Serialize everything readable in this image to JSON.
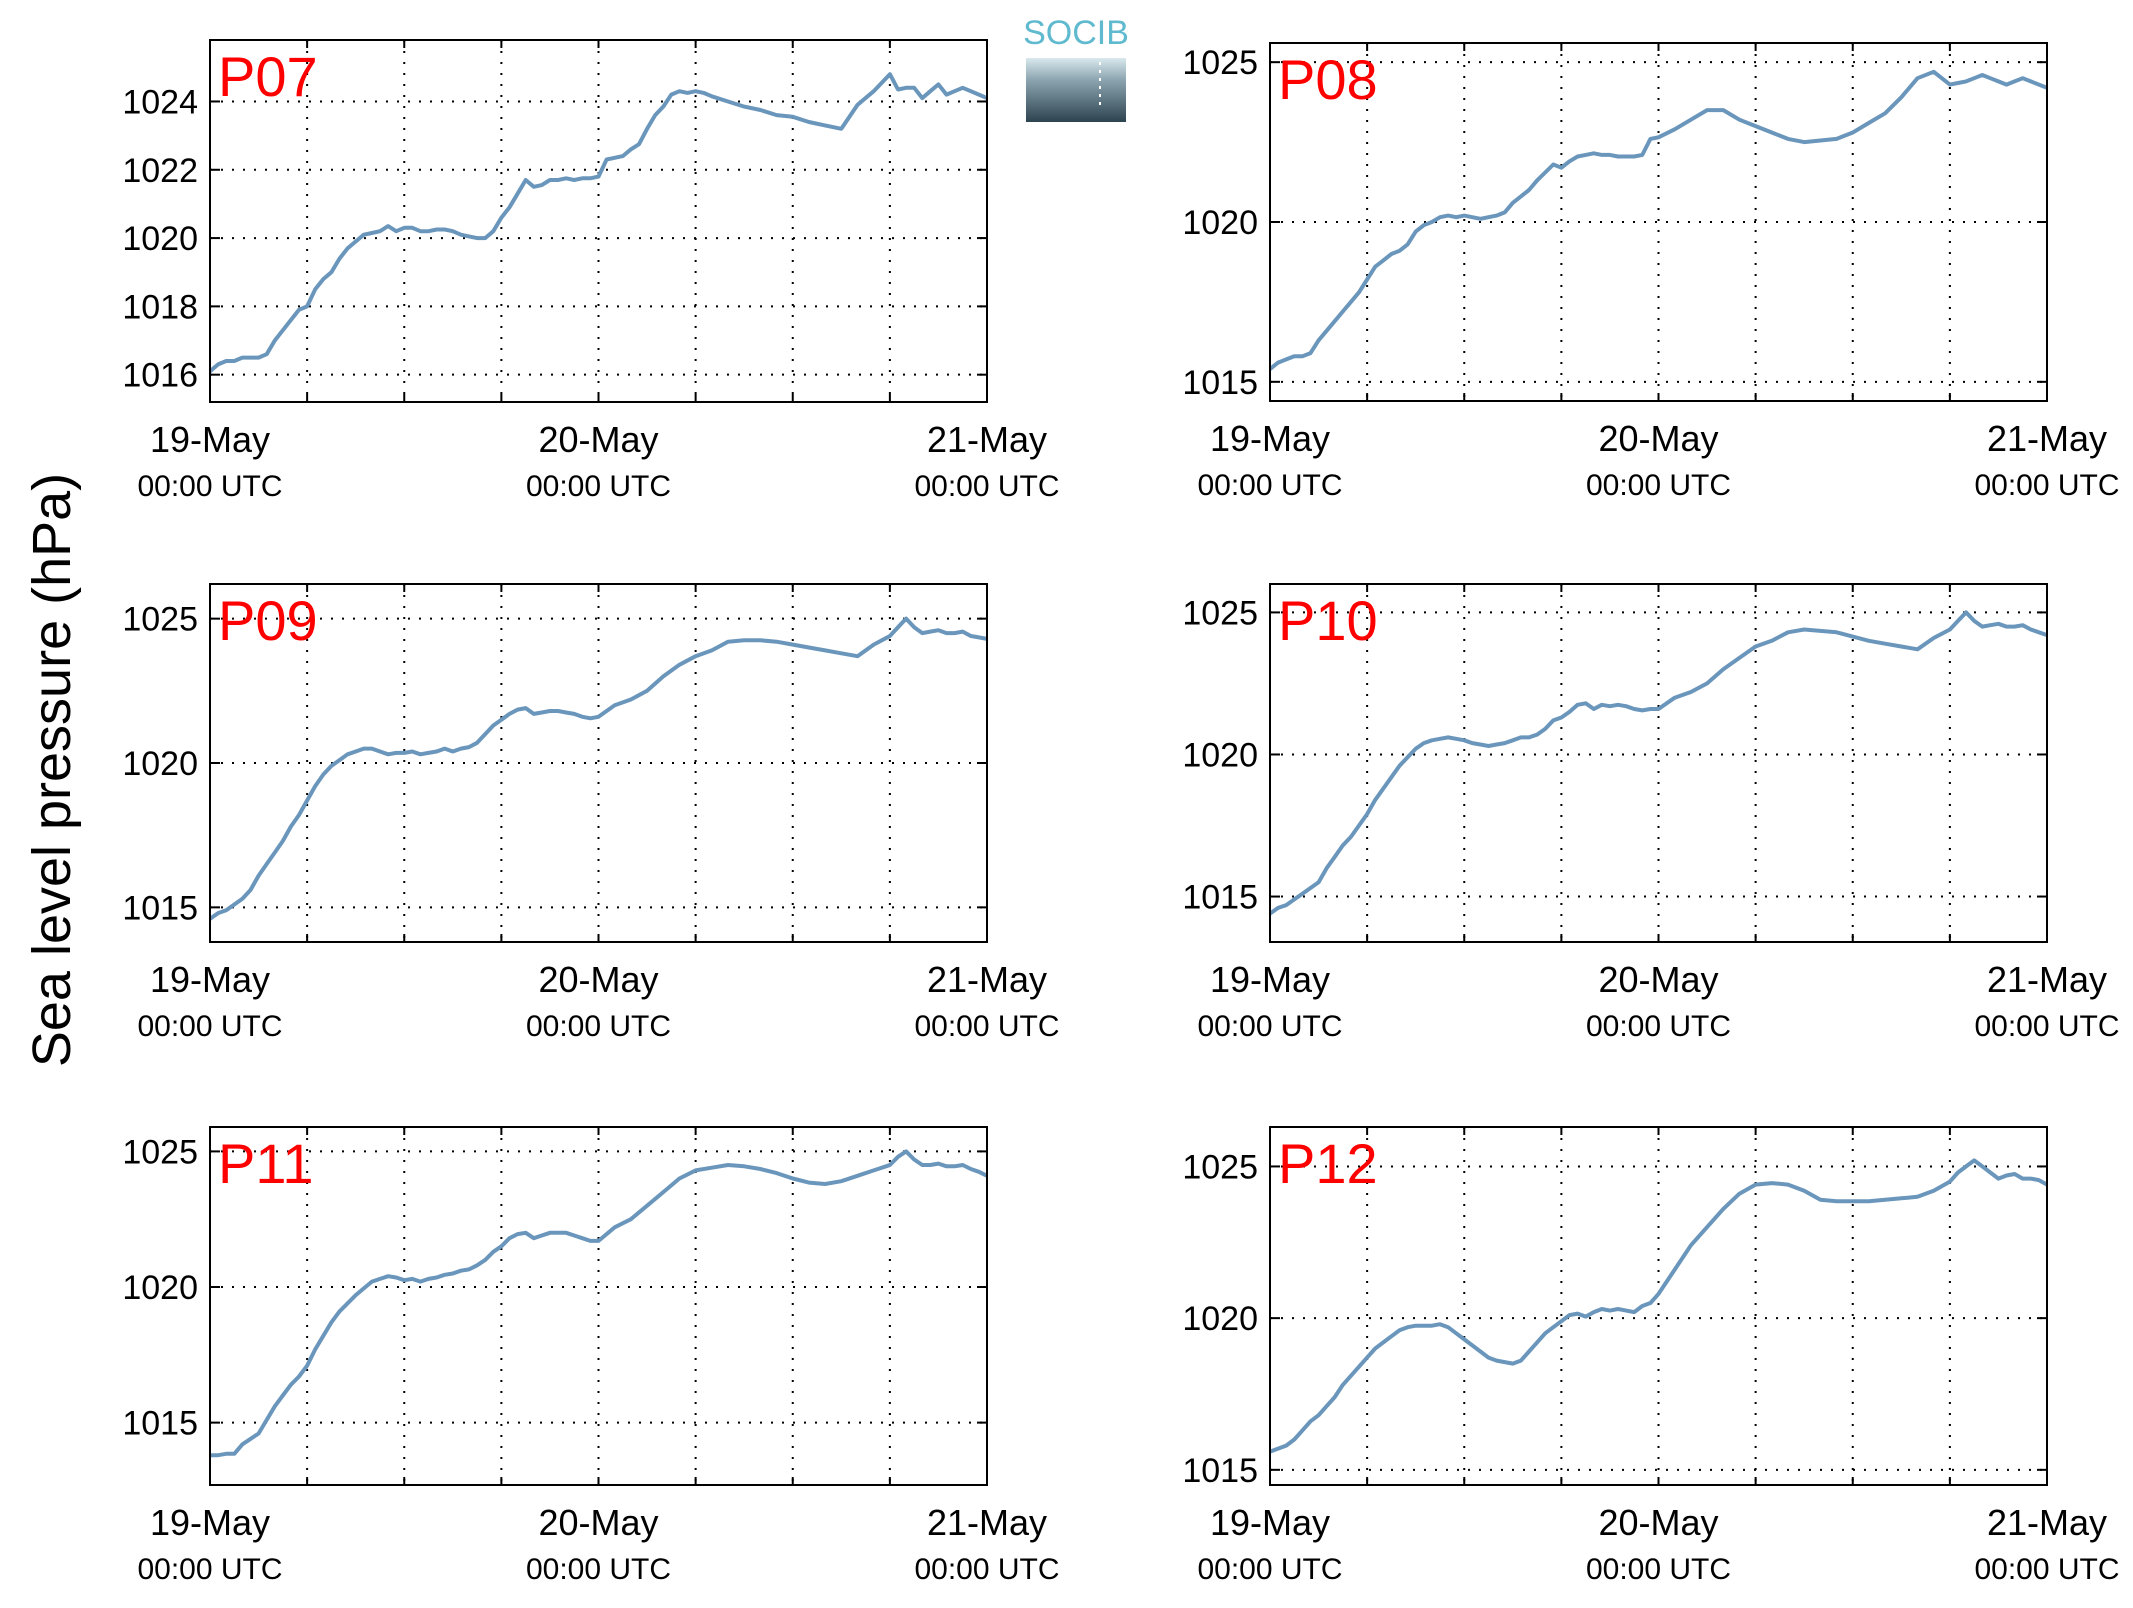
{
  "figure": {
    "ylabel": "Sea level pressure (hPa)",
    "logo_text": "SOCIB",
    "line_color": "#6b96bc",
    "panel_label_color": "#ff0000"
  },
  "chart_data": [
    {
      "type": "line",
      "title": "P07",
      "x_ticks": [
        {
          "line1": "19-May",
          "line2": "00:00 UTC"
        },
        {
          "line1": "20-May",
          "line2": "00:00 UTC"
        },
        {
          "line1": "21-May",
          "line2": "00:00 UTC"
        }
      ],
      "xlim": [
        0,
        48
      ],
      "ylim": [
        1015.2,
        1025.8
      ],
      "y_ticks": [
        1016,
        1018,
        1020,
        1022,
        1024
      ],
      "grid": true,
      "x": [
        0,
        0.5,
        1,
        1.5,
        2,
        2.5,
        3,
        3.5,
        4,
        4.5,
        5,
        5.5,
        6,
        6.5,
        7,
        7.5,
        8,
        8.5,
        9,
        9.5,
        10,
        10.5,
        11,
        11.5,
        12,
        12.5,
        13,
        13.5,
        14,
        14.5,
        15,
        15.5,
        16,
        16.5,
        17,
        17.5,
        18,
        18.5,
        19,
        19.5,
        20,
        20.5,
        21,
        21.5,
        22,
        22.5,
        23,
        23.5,
        24,
        24.5,
        25,
        25.5,
        26,
        26.5,
        27,
        27.5,
        28,
        28.5,
        29,
        29.5,
        30,
        30.5,
        31,
        32,
        33,
        34,
        35,
        36,
        37,
        38,
        39,
        40,
        41,
        42,
        42.5,
        43,
        43.5,
        44,
        44.5,
        45,
        45.5,
        46,
        46.5,
        47,
        47.5,
        48
      ],
      "values": [
        1016.1,
        1016.3,
        1016.4,
        1016.4,
        1016.5,
        1016.5,
        1016.5,
        1016.6,
        1017.0,
        1017.3,
        1017.6,
        1017.9,
        1018.0,
        1018.5,
        1018.8,
        1019.0,
        1019.4,
        1019.7,
        1019.9,
        1020.1,
        1020.15,
        1020.2,
        1020.35,
        1020.2,
        1020.3,
        1020.3,
        1020.2,
        1020.2,
        1020.25,
        1020.25,
        1020.2,
        1020.1,
        1020.05,
        1020.0,
        1020.0,
        1020.2,
        1020.6,
        1020.9,
        1021.3,
        1021.7,
        1021.5,
        1021.55,
        1021.7,
        1021.7,
        1021.75,
        1021.7,
        1021.75,
        1021.75,
        1021.8,
        1022.3,
        1022.35,
        1022.4,
        1022.6,
        1022.75,
        1023.2,
        1023.6,
        1023.85,
        1024.2,
        1024.3,
        1024.25,
        1024.3,
        1024.25,
        1024.15,
        1024.0,
        1023.85,
        1023.75,
        1023.6,
        1023.55,
        1023.4,
        1023.3,
        1023.2,
        1023.9,
        1024.3,
        1024.8,
        1024.35,
        1024.4,
        1024.4,
        1024.1,
        1024.3,
        1024.5,
        1024.2,
        1024.3,
        1024.4,
        1024.3,
        1024.2,
        1024.1
      ],
      "values_note": ""
    },
    {
      "type": "line",
      "title": "P08",
      "x_ticks": [
        {
          "line1": "19-May",
          "line2": "00:00 UTC"
        },
        {
          "line1": "20-May",
          "line2": "00:00 UTC"
        },
        {
          "line1": "21-May",
          "line2": "00:00 UTC"
        }
      ],
      "xlim": [
        0,
        48
      ],
      "ylim": [
        1014.4,
        1025.6
      ],
      "y_ticks": [
        1015,
        1020,
        1025
      ],
      "grid": true,
      "x": [
        0,
        0.5,
        1,
        1.5,
        2,
        2.5,
        3,
        3.5,
        4,
        4.5,
        5,
        5.5,
        6,
        6.5,
        7,
        7.5,
        8,
        8.5,
        9,
        9.5,
        10,
        10.5,
        11,
        11.5,
        12,
        12.5,
        13,
        13.5,
        14,
        14.5,
        15,
        15.5,
        16,
        16.5,
        17,
        17.5,
        18,
        18.5,
        19,
        19.5,
        20,
        20.5,
        21,
        21.5,
        22,
        22.5,
        23,
        23.5,
        24,
        25,
        26,
        27,
        28,
        29,
        30,
        31,
        32,
        33,
        34,
        35,
        36,
        37,
        38,
        39,
        40,
        41,
        42,
        42.5,
        43,
        43.5,
        44,
        44.5,
        45,
        45.5,
        46,
        46.5,
        47,
        47.5,
        48
      ],
      "values": [
        1015.4,
        1015.6,
        1015.7,
        1015.8,
        1015.8,
        1015.9,
        1016.3,
        1016.6,
        1016.9,
        1017.2,
        1017.5,
        1017.8,
        1018.2,
        1018.6,
        1018.8,
        1019.0,
        1019.1,
        1019.3,
        1019.7,
        1019.9,
        1020.0,
        1020.15,
        1020.2,
        1020.15,
        1020.2,
        1020.15,
        1020.1,
        1020.15,
        1020.2,
        1020.3,
        1020.6,
        1020.8,
        1021.0,
        1021.3,
        1021.55,
        1021.8,
        1021.7,
        1021.9,
        1022.05,
        1022.1,
        1022.15,
        1022.1,
        1022.1,
        1022.05,
        1022.05,
        1022.05,
        1022.1,
        1022.6,
        1022.65,
        1022.9,
        1023.2,
        1023.5,
        1023.5,
        1023.2,
        1023.0,
        1022.8,
        1022.6,
        1022.5,
        1022.55,
        1022.6,
        1022.8,
        1023.1,
        1023.4,
        1023.9,
        1024.5,
        1024.7,
        1024.3,
        1024.35,
        1024.4,
        1024.5,
        1024.6,
        1024.5,
        1024.4,
        1024.3,
        1024.4,
        1024.5,
        1024.4,
        1024.3,
        1024.2
      ],
      "values_note": ""
    },
    {
      "type": "line",
      "title": "P09",
      "x_ticks": [
        {
          "line1": "19-May",
          "line2": "00:00 UTC"
        },
        {
          "line1": "20-May",
          "line2": "00:00 UTC"
        },
        {
          "line1": "21-May",
          "line2": "00:00 UTC"
        }
      ],
      "xlim": [
        0,
        48
      ],
      "ylim": [
        1013.8,
        1026.2
      ],
      "y_ticks": [
        1015,
        1020,
        1025
      ],
      "grid": true,
      "x": [
        0,
        0.5,
        1,
        1.5,
        2,
        2.5,
        3,
        3.5,
        4,
        4.5,
        5,
        5.5,
        6,
        6.5,
        7,
        7.5,
        8,
        8.5,
        9,
        9.5,
        10,
        10.5,
        11,
        11.5,
        12,
        12.5,
        13,
        13.5,
        14,
        14.5,
        15,
        15.5,
        16,
        16.5,
        17,
        17.5,
        18,
        18.5,
        19,
        19.5,
        20,
        20.5,
        21,
        21.5,
        22,
        22.5,
        23,
        23.5,
        24,
        25,
        26,
        27,
        28,
        29,
        30,
        31,
        32,
        33,
        34,
        35,
        36,
        37,
        38,
        39,
        40,
        41,
        42,
        42.5,
        43,
        43.5,
        44,
        44.5,
        45,
        45.5,
        46,
        46.5,
        47,
        47.5,
        48
      ],
      "values": [
        1014.6,
        1014.8,
        1014.9,
        1015.1,
        1015.3,
        1015.6,
        1016.1,
        1016.5,
        1016.9,
        1017.3,
        1017.8,
        1018.2,
        1018.7,
        1019.2,
        1019.6,
        1019.9,
        1020.1,
        1020.3,
        1020.4,
        1020.5,
        1020.5,
        1020.4,
        1020.3,
        1020.35,
        1020.35,
        1020.4,
        1020.3,
        1020.35,
        1020.4,
        1020.5,
        1020.4,
        1020.5,
        1020.55,
        1020.7,
        1021.0,
        1021.3,
        1021.5,
        1021.7,
        1021.85,
        1021.9,
        1021.7,
        1021.75,
        1021.8,
        1021.8,
        1021.75,
        1021.7,
        1021.6,
        1021.55,
        1021.6,
        1022.0,
        1022.2,
        1022.5,
        1023.0,
        1023.4,
        1023.7,
        1023.9,
        1024.2,
        1024.25,
        1024.25,
        1024.2,
        1024.1,
        1024.0,
        1023.9,
        1023.8,
        1023.7,
        1024.1,
        1024.4,
        1024.7,
        1025.0,
        1024.7,
        1024.5,
        1024.55,
        1024.6,
        1024.5,
        1024.5,
        1024.55,
        1024.4,
        1024.35,
        1024.3
      ],
      "values_note": ""
    },
    {
      "type": "line",
      "title": "P10",
      "x_ticks": [
        {
          "line1": "19-May",
          "line2": "00:00 UTC"
        },
        {
          "line1": "20-May",
          "line2": "00:00 UTC"
        },
        {
          "line1": "21-May",
          "line2": "00:00 UTC"
        }
      ],
      "xlim": [
        0,
        48
      ],
      "ylim": [
        1013.4,
        1026.0
      ],
      "y_ticks": [
        1015,
        1020,
        1025
      ],
      "grid": true,
      "x": [
        0,
        0.5,
        1,
        1.5,
        2,
        2.5,
        3,
        3.5,
        4,
        4.5,
        5,
        5.5,
        6,
        6.5,
        7,
        7.5,
        8,
        8.5,
        9,
        9.5,
        10,
        10.5,
        11,
        11.5,
        12,
        12.5,
        13,
        13.5,
        14,
        14.5,
        15,
        15.5,
        16,
        16.5,
        17,
        17.5,
        18,
        18.5,
        19,
        19.5,
        20,
        20.5,
        21,
        21.5,
        22,
        22.5,
        23,
        23.5,
        24,
        25,
        26,
        27,
        28,
        29,
        30,
        31,
        32,
        33,
        34,
        35,
        36,
        37,
        38,
        39,
        40,
        41,
        42,
        42.5,
        43,
        43.5,
        44,
        44.5,
        45,
        45.5,
        46,
        46.5,
        47,
        47.5,
        48
      ],
      "values": [
        1014.4,
        1014.6,
        1014.7,
        1014.9,
        1015.1,
        1015.3,
        1015.5,
        1016.0,
        1016.4,
        1016.8,
        1017.1,
        1017.5,
        1017.9,
        1018.4,
        1018.8,
        1019.2,
        1019.6,
        1019.9,
        1020.2,
        1020.4,
        1020.5,
        1020.55,
        1020.6,
        1020.55,
        1020.5,
        1020.4,
        1020.35,
        1020.3,
        1020.35,
        1020.4,
        1020.5,
        1020.6,
        1020.6,
        1020.7,
        1020.9,
        1021.2,
        1021.3,
        1021.5,
        1021.75,
        1021.8,
        1021.6,
        1021.75,
        1021.7,
        1021.75,
        1021.7,
        1021.6,
        1021.55,
        1021.6,
        1021.6,
        1022.0,
        1022.2,
        1022.5,
        1023.0,
        1023.4,
        1023.8,
        1024.0,
        1024.3,
        1024.4,
        1024.35,
        1024.3,
        1024.15,
        1024.0,
        1023.9,
        1023.8,
        1023.7,
        1024.1,
        1024.4,
        1024.7,
        1025.0,
        1024.7,
        1024.5,
        1024.55,
        1024.6,
        1024.5,
        1024.5,
        1024.55,
        1024.4,
        1024.3,
        1024.2
      ],
      "values_note": ""
    },
    {
      "type": "line",
      "title": "P11",
      "x_ticks": [
        {
          "line1": "19-May",
          "line2": "00:00 UTC"
        },
        {
          "line1": "20-May",
          "line2": "00:00 UTC"
        },
        {
          "line1": "21-May",
          "line2": "00:00 UTC"
        }
      ],
      "xlim": [
        0,
        48
      ],
      "ylim": [
        1012.7,
        1025.9
      ],
      "y_ticks": [
        1015,
        1020,
        1025
      ],
      "grid": true,
      "x": [
        0,
        0.5,
        1,
        1.5,
        2,
        2.5,
        3,
        3.5,
        4,
        4.5,
        5,
        5.5,
        6,
        6.5,
        7,
        7.5,
        8,
        8.5,
        9,
        9.5,
        10,
        10.5,
        11,
        11.5,
        12,
        12.5,
        13,
        13.5,
        14,
        14.5,
        15,
        15.5,
        16,
        16.5,
        17,
        17.5,
        18,
        18.5,
        19,
        19.5,
        20,
        20.5,
        21,
        21.5,
        22,
        22.5,
        23,
        23.5,
        24,
        25,
        26,
        27,
        28,
        29,
        30,
        31,
        32,
        33,
        34,
        35,
        36,
        37,
        38,
        39,
        40,
        41,
        42,
        42.5,
        43,
        43.5,
        44,
        44.5,
        45,
        45.5,
        46,
        46.5,
        47,
        47.5,
        48
      ],
      "values": [
        1013.8,
        1013.8,
        1013.85,
        1013.85,
        1014.2,
        1014.4,
        1014.6,
        1015.1,
        1015.6,
        1016.0,
        1016.4,
        1016.7,
        1017.1,
        1017.7,
        1018.2,
        1018.7,
        1019.1,
        1019.4,
        1019.7,
        1019.95,
        1020.2,
        1020.3,
        1020.4,
        1020.35,
        1020.25,
        1020.3,
        1020.2,
        1020.3,
        1020.35,
        1020.45,
        1020.5,
        1020.6,
        1020.65,
        1020.8,
        1021.0,
        1021.3,
        1021.5,
        1021.8,
        1021.95,
        1022.0,
        1021.8,
        1021.9,
        1022.0,
        1022.0,
        1022.0,
        1021.9,
        1021.8,
        1021.7,
        1021.7,
        1022.2,
        1022.5,
        1023.0,
        1023.5,
        1024.0,
        1024.3,
        1024.4,
        1024.5,
        1024.45,
        1024.35,
        1024.2,
        1024.0,
        1023.85,
        1023.8,
        1023.9,
        1024.1,
        1024.3,
        1024.5,
        1024.8,
        1025.0,
        1024.7,
        1024.5,
        1024.5,
        1024.55,
        1024.45,
        1024.45,
        1024.5,
        1024.35,
        1024.25,
        1024.1
      ],
      "values_note": ""
    },
    {
      "type": "line",
      "title": "P12",
      "x_ticks": [
        {
          "line1": "19-May",
          "line2": "00:00 UTC"
        },
        {
          "line1": "20-May",
          "line2": "00:00 UTC"
        },
        {
          "line1": "21-May",
          "line2": "00:00 UTC"
        }
      ],
      "xlim": [
        0,
        48
      ],
      "ylim": [
        1014.5,
        1026.3
      ],
      "y_ticks": [
        1015,
        1020,
        1025
      ],
      "grid": true,
      "x": [
        0,
        0.5,
        1,
        1.5,
        2,
        2.5,
        3,
        3.5,
        4,
        4.5,
        5,
        5.5,
        6,
        6.5,
        7,
        7.5,
        8,
        8.5,
        9,
        9.5,
        10,
        10.5,
        11,
        11.5,
        12,
        12.5,
        13,
        13.5,
        14,
        14.5,
        15,
        15.5,
        16,
        16.5,
        17,
        17.5,
        18,
        18.5,
        19,
        19.5,
        20,
        20.5,
        21,
        21.5,
        22,
        22.5,
        23,
        23.5,
        24,
        25,
        26,
        27,
        28,
        29,
        30,
        31,
        32,
        33,
        34,
        35,
        36,
        37,
        38,
        39,
        40,
        41,
        42,
        42.5,
        43,
        43.5,
        44,
        44.5,
        45,
        45.5,
        46,
        46.5,
        47,
        47.5,
        48
      ],
      "values": [
        1015.6,
        1015.7,
        1015.8,
        1016.0,
        1016.3,
        1016.6,
        1016.8,
        1017.1,
        1017.4,
        1017.8,
        1018.1,
        1018.4,
        1018.7,
        1019.0,
        1019.2,
        1019.4,
        1019.6,
        1019.7,
        1019.75,
        1019.75,
        1019.75,
        1019.8,
        1019.7,
        1019.5,
        1019.3,
        1019.1,
        1018.9,
        1018.7,
        1018.6,
        1018.55,
        1018.5,
        1018.6,
        1018.9,
        1019.2,
        1019.5,
        1019.7,
        1019.9,
        1020.1,
        1020.15,
        1020.05,
        1020.2,
        1020.3,
        1020.25,
        1020.3,
        1020.25,
        1020.2,
        1020.4,
        1020.5,
        1020.8,
        1021.6,
        1022.4,
        1023.0,
        1023.6,
        1024.1,
        1024.4,
        1024.45,
        1024.4,
        1024.2,
        1023.9,
        1023.85,
        1023.85,
        1023.85,
        1023.9,
        1023.95,
        1024.0,
        1024.2,
        1024.5,
        1024.8,
        1025.0,
        1025.2,
        1025.0,
        1024.8,
        1024.6,
        1024.7,
        1024.75,
        1024.6,
        1024.6,
        1024.55,
        1024.4
      ],
      "values_note": ""
    }
  ]
}
